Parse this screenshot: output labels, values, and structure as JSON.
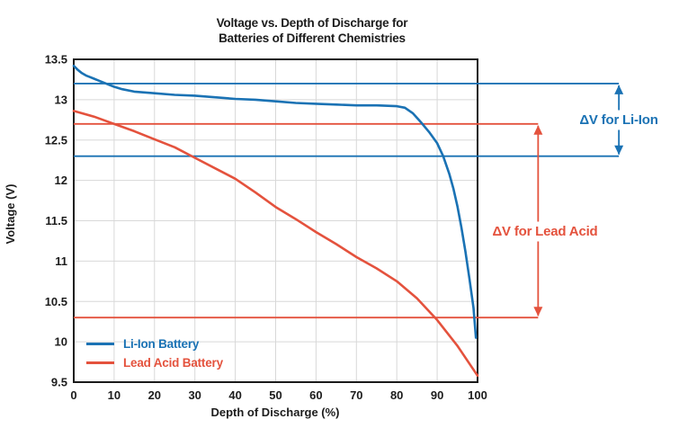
{
  "figure": {
    "y_axis_title": "Voltage (V)",
    "x_axis_title": "Depth of Discharge (%)"
  },
  "colors": {
    "li_ion": "#1a72b4",
    "lead_acid": "#e4523d",
    "grid": "#d8d8d8",
    "axis_frame": "#1a1a1a",
    "text": "#1c1c1c"
  },
  "legend": {
    "items": [
      {
        "label": "Li-Ion Battery",
        "color": "#1a72b4"
      },
      {
        "label": "Lead Acid Battery",
        "color": "#e4523d"
      }
    ]
  },
  "chart_data": {
    "type": "line",
    "title": "Voltage vs. Depth of Discharge for\nBatteries of Different Chemistries",
    "xlabel": "Depth of Discharge (%)",
    "ylabel": "Voltage (V)",
    "xlim": [
      0,
      100
    ],
    "ylim": [
      9.5,
      13.5
    ],
    "x_ticks": [
      0,
      10,
      20,
      30,
      40,
      50,
      60,
      70,
      80,
      90,
      100
    ],
    "y_ticks": [
      9.5,
      10,
      10.5,
      11,
      11.5,
      12,
      12.5,
      13,
      13.5
    ],
    "grid": true,
    "legend_position": "lower left",
    "series": [
      {
        "name": "Li-Ion Battery",
        "color": "#1a72b4",
        "points": [
          [
            0,
            13.42
          ],
          [
            1,
            13.37
          ],
          [
            2,
            13.33
          ],
          [
            3,
            13.3
          ],
          [
            4,
            13.28
          ],
          [
            5,
            13.26
          ],
          [
            6,
            13.24
          ],
          [
            8,
            13.2
          ],
          [
            10,
            13.16
          ],
          [
            12,
            13.13
          ],
          [
            15,
            13.1
          ],
          [
            20,
            13.08
          ],
          [
            25,
            13.06
          ],
          [
            30,
            13.05
          ],
          [
            35,
            13.03
          ],
          [
            40,
            13.01
          ],
          [
            45,
            13.0
          ],
          [
            50,
            12.98
          ],
          [
            55,
            12.96
          ],
          [
            60,
            12.95
          ],
          [
            65,
            12.94
          ],
          [
            70,
            12.93
          ],
          [
            75,
            12.93
          ],
          [
            80,
            12.92
          ],
          [
            82,
            12.9
          ],
          [
            84,
            12.83
          ],
          [
            86,
            12.72
          ],
          [
            88,
            12.6
          ],
          [
            90,
            12.46
          ],
          [
            91.5,
            12.3
          ],
          [
            93,
            12.08
          ],
          [
            94,
            11.9
          ],
          [
            95,
            11.68
          ],
          [
            96,
            11.42
          ],
          [
            97,
            11.12
          ],
          [
            98,
            10.78
          ],
          [
            99,
            10.42
          ],
          [
            99.6,
            10.05
          ]
        ]
      },
      {
        "name": "Lead Acid Battery",
        "color": "#e4523d",
        "points": [
          [
            0,
            12.86
          ],
          [
            5,
            12.79
          ],
          [
            10,
            12.7
          ],
          [
            15,
            12.61
          ],
          [
            20,
            12.51
          ],
          [
            25,
            12.41
          ],
          [
            30,
            12.28
          ],
          [
            35,
            12.15
          ],
          [
            40,
            12.02
          ],
          [
            45,
            11.85
          ],
          [
            50,
            11.67
          ],
          [
            55,
            11.52
          ],
          [
            60,
            11.36
          ],
          [
            65,
            11.21
          ],
          [
            70,
            11.05
          ],
          [
            75,
            10.91
          ],
          [
            80,
            10.75
          ],
          [
            85,
            10.54
          ],
          [
            90,
            10.27
          ],
          [
            95,
            9.95
          ],
          [
            100,
            9.58
          ]
        ]
      }
    ],
    "annotations": [
      {
        "label": "ΔV for Li-Ion",
        "color": "#1a72b4",
        "v_top": 13.2,
        "v_bottom": 12.3,
        "arrow_x_pct": 135
      },
      {
        "label": "ΔV for Lead Acid",
        "color": "#e4523d",
        "v_top": 12.7,
        "v_bottom": 10.3,
        "arrow_x_pct": 115
      }
    ]
  }
}
